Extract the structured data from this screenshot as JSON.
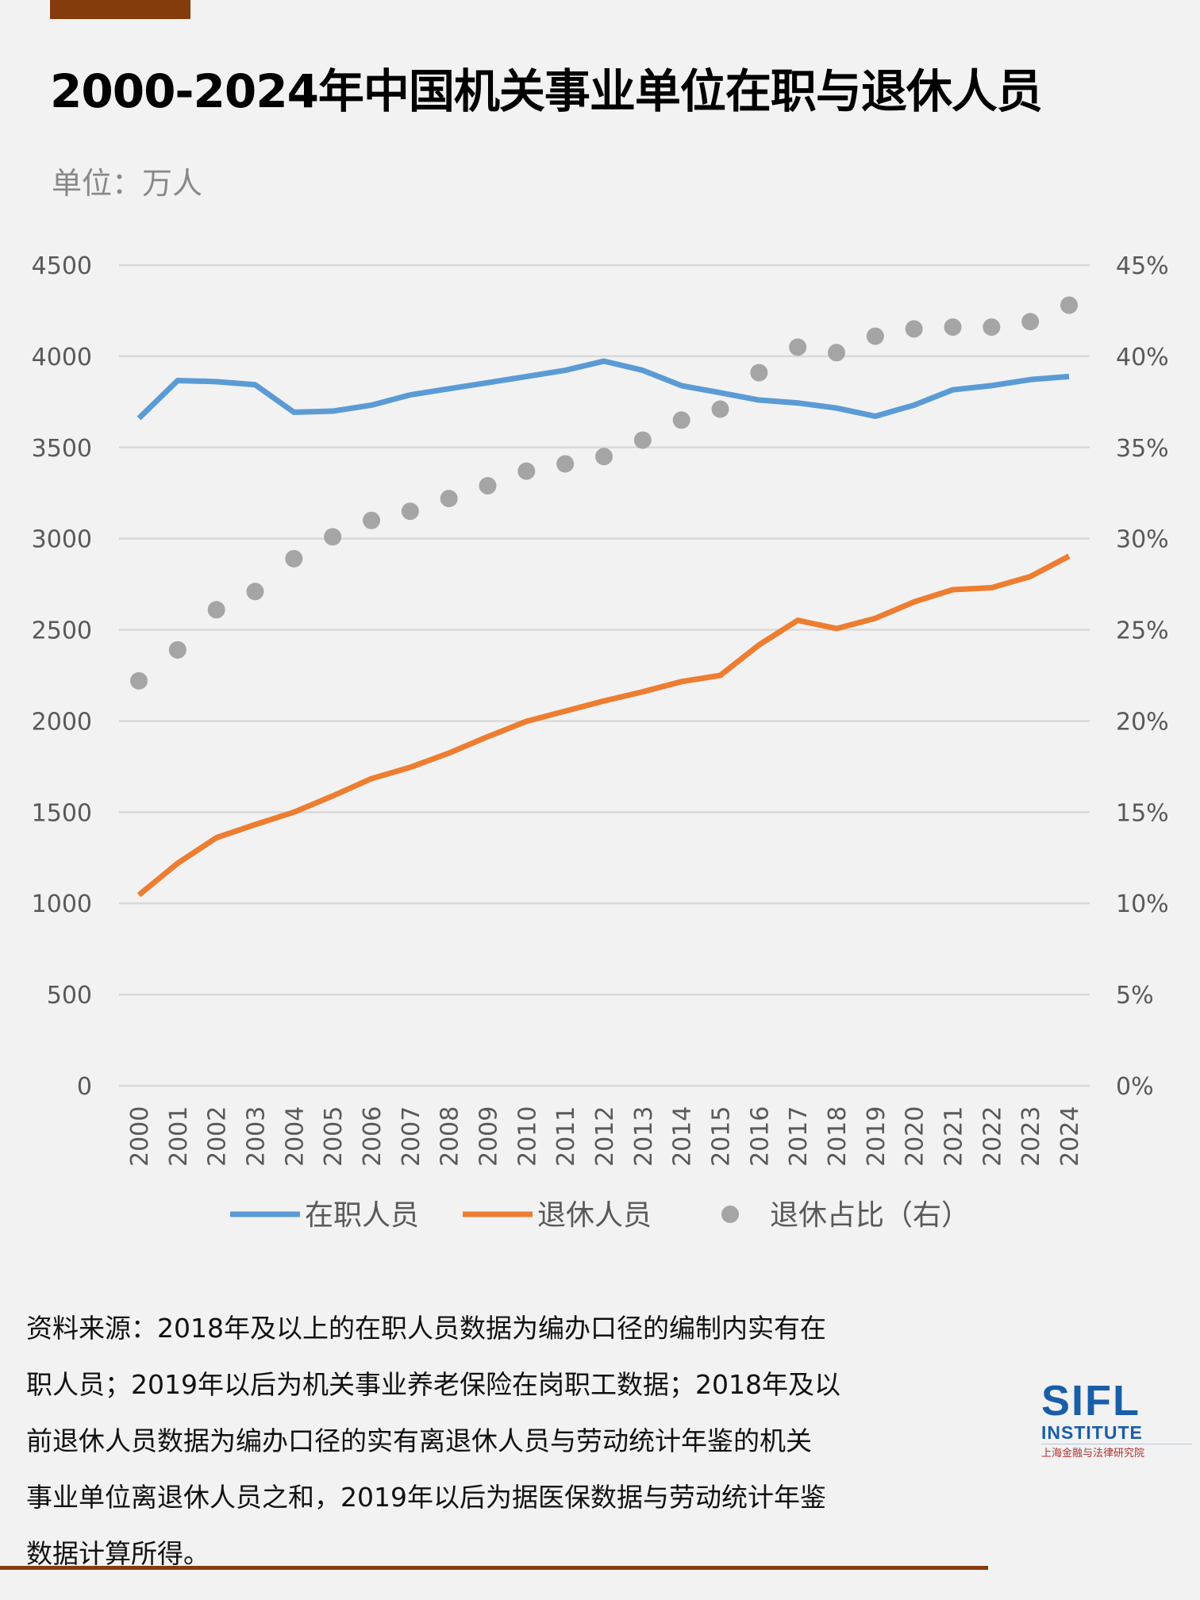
{
  "header": {
    "title": "2000-2024年中国机关事业单位在职与退休人员",
    "unit": "单位：万人"
  },
  "chart_data": {
    "type": "line",
    "categories": [
      "2000",
      "2001",
      "2002",
      "2003",
      "2004",
      "2005",
      "2006",
      "2007",
      "2008",
      "2009",
      "2010",
      "2011",
      "2012",
      "2013",
      "2014",
      "2015",
      "2016",
      "2017",
      "2018",
      "2019",
      "2020",
      "2021",
      "2022",
      "2023",
      "2024"
    ],
    "left_axis": {
      "range": [
        0,
        4500
      ],
      "ticks": [
        "0",
        "500",
        "1000",
        "1500",
        "2000",
        "2500",
        "3000",
        "3500",
        "4000",
        "4500"
      ]
    },
    "right_axis": {
      "range": [
        0,
        45
      ],
      "ticks": [
        "0%",
        "5%",
        "10%",
        "15%",
        "20%",
        "25%",
        "30%",
        "35%",
        "40%",
        "45%"
      ]
    },
    "grid": true,
    "legend_position": "bottom",
    "series": [
      {
        "name": "在职人员",
        "type": "line",
        "axis": "left",
        "color": "#5b9bd5",
        "values": [
          3660,
          3867,
          3861,
          3844,
          3693,
          3699,
          3732,
          3788,
          3822,
          3855,
          3889,
          3923,
          3973,
          3923,
          3839,
          3800,
          3760,
          3744,
          3716,
          3671,
          3732,
          3816,
          3839,
          3872,
          3889
        ]
      },
      {
        "name": "退休人员",
        "type": "line",
        "axis": "left",
        "color": "#ed7d31",
        "values": [
          1046,
          1220,
          1360,
          1432,
          1500,
          1589,
          1684,
          1746,
          1824,
          1914,
          1998,
          2054,
          2110,
          2160,
          2216,
          2250,
          2417,
          2552,
          2507,
          2563,
          2653,
          2720,
          2731,
          2792,
          2904
        ]
      },
      {
        "name": "退休占比（右）",
        "type": "scatter",
        "axis": "right",
        "color": "#a5a5a5",
        "values": [
          22.2,
          23.9,
          26.1,
          27.1,
          28.9,
          30.1,
          31.0,
          31.5,
          32.2,
          32.9,
          33.7,
          34.1,
          34.5,
          35.4,
          36.5,
          37.1,
          39.1,
          40.5,
          40.2,
          41.1,
          41.5,
          41.6,
          41.6,
          41.9,
          42.8
        ]
      }
    ]
  },
  "source": {
    "lines": [
      "资料来源：2018年及以上的在职人员数据为编办口径的编制内实有在",
      "职人员；2019年以后为机关事业养老保险在岗职工数据；2018年及以",
      "前退休人员数据为编办口径的实有离退休人员与劳动统计年鉴的机关",
      "事业单位离退休人员之和，2019年以后为据医保数据与劳动统计年鉴",
      "数据计算所得。"
    ]
  },
  "logo": {
    "text": "SIFL",
    "sub": "INSTITUTE",
    "cn": "上海金融与法律研究院"
  },
  "colors": {
    "accent_bar": "#843c0c",
    "background": "#f2f2f2"
  }
}
